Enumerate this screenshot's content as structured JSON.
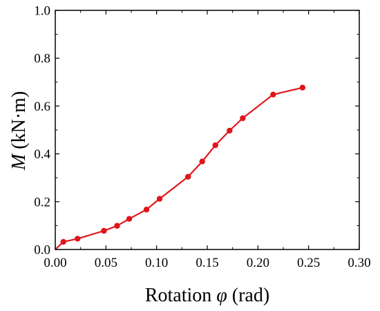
{
  "chart_data": {
    "type": "line",
    "xlabel": {
      "prefix": "Rotation ",
      "symbol": "φ",
      "suffix": " (rad)"
    },
    "ylabel": {
      "symbol": "M",
      "suffix": " (kN·m)"
    },
    "xlim": [
      0.0,
      0.3
    ],
    "ylim": [
      0.0,
      1.0
    ],
    "x_ticks": [
      0.0,
      0.05,
      0.1,
      0.15,
      0.2,
      0.25,
      0.3
    ],
    "x_tick_labels": [
      "0.00",
      "0.05",
      "0.10",
      "0.15",
      "0.20",
      "0.25",
      "0.30"
    ],
    "y_ticks": [
      0.0,
      0.2,
      0.4,
      0.6,
      0.8,
      1.0
    ],
    "y_tick_labels": [
      "0.0",
      "0.2",
      "0.4",
      "0.6",
      "0.8",
      "1.0"
    ],
    "grid": false,
    "series": [
      {
        "color": "#e0151b",
        "x": [
          0.0,
          0.008,
          0.022,
          0.048,
          0.061,
          0.073,
          0.09,
          0.103,
          0.131,
          0.145,
          0.158,
          0.172,
          0.185,
          0.215,
          0.244
        ],
        "y": [
          0.0,
          0.032,
          0.045,
          0.078,
          0.099,
          0.128,
          0.167,
          0.212,
          0.304,
          0.368,
          0.436,
          0.497,
          0.549,
          0.648,
          0.677
        ],
        "markers": [
          false,
          true,
          true,
          true,
          true,
          true,
          true,
          true,
          true,
          true,
          true,
          true,
          true,
          true,
          true
        ]
      }
    ]
  }
}
